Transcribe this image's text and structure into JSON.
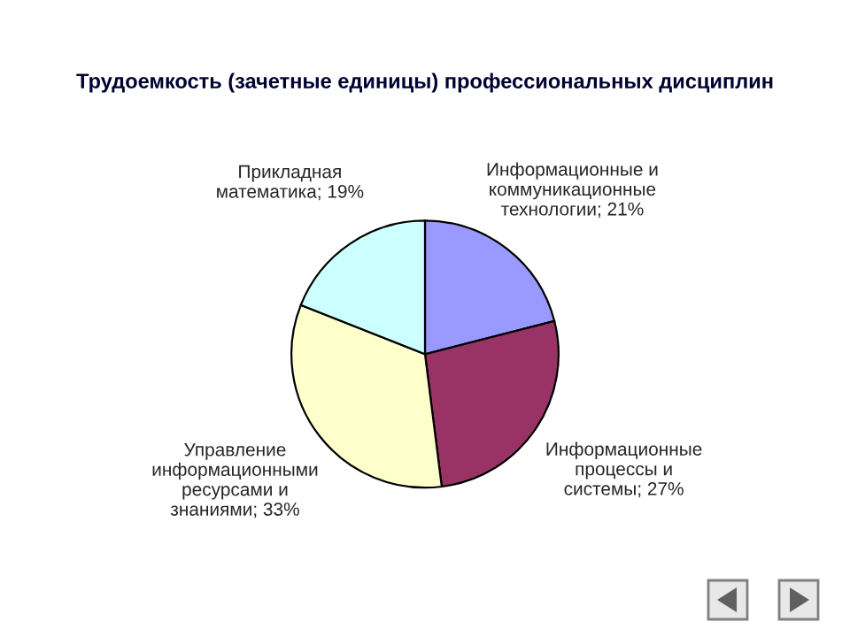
{
  "chart_data": {
    "type": "pie",
    "title": "Трудоемкость (зачетные единицы) профессиональных дисциплин",
    "categories": [
      "Информационные и коммуникационные технологии; 21%",
      "Информационные процессы и системы; 27%",
      "Управление информационными ресурсами и знаниями; 33%",
      "Прикладная математика; 19%"
    ],
    "values": [
      21,
      27,
      33,
      19
    ],
    "colors": [
      "#9999ff",
      "#993366",
      "#ffffcc",
      "#ccffff"
    ]
  }
}
